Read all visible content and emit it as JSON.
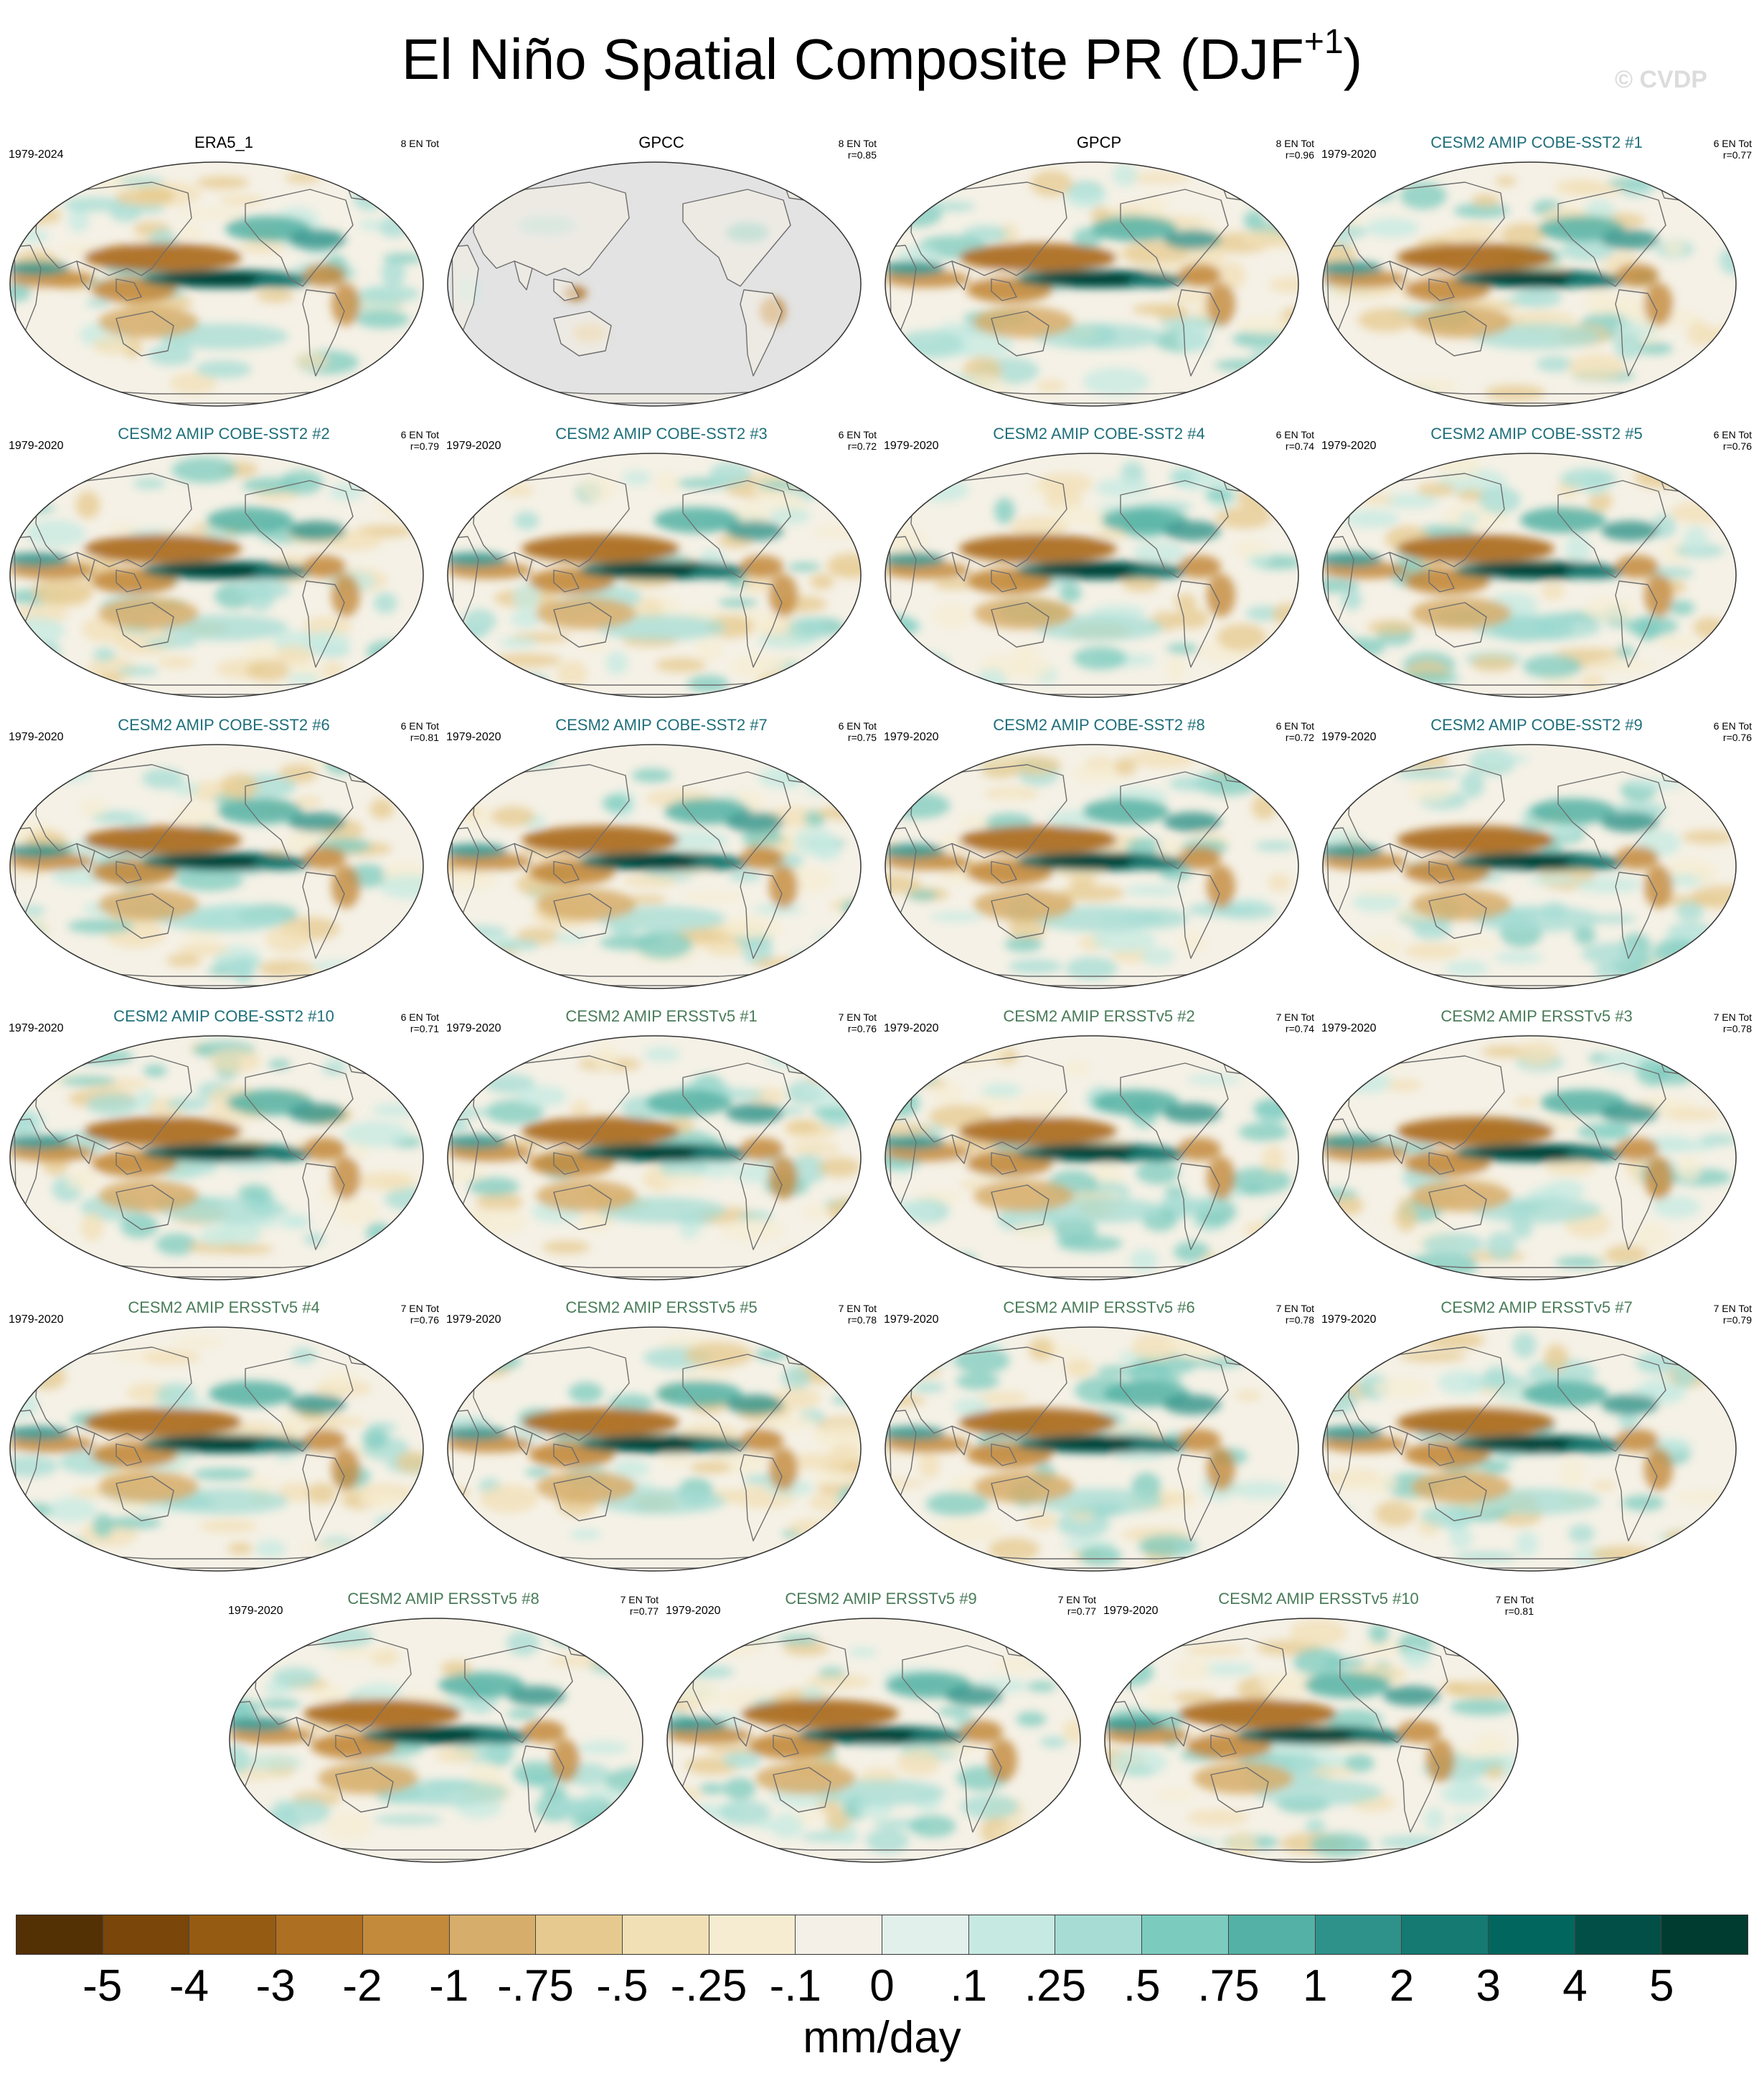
{
  "figure": {
    "title_main": "El Niño Spatial Composite PR (DJF",
    "title_sup": "+1",
    "title_close": ")",
    "watermark": "© CVDP"
  },
  "colors": {
    "observation_title": "#000000",
    "cobe_title": "#1f6f7a",
    "ersst_title": "#4a7c59",
    "ocean_anomaly_positive": "#01665e",
    "ocean_anomaly_negative": "#8c510a",
    "masked_ocean": "#e3e3e3",
    "coastline": "#6e6e6e"
  },
  "panels": [
    {
      "title": "ERA5_1",
      "years": "1979-2024",
      "count": "8 EN Tot",
      "r": "",
      "group": "obs",
      "masked": false
    },
    {
      "title": "GPCC",
      "years": "",
      "count": "8 EN Tot",
      "r": "r=0.85",
      "group": "obs",
      "masked": true
    },
    {
      "title": "GPCP",
      "years": "",
      "count": "8 EN Tot",
      "r": "r=0.96",
      "group": "obs",
      "masked": false
    },
    {
      "title": "CESM2 AMIP COBE-SST2 #1",
      "years": "1979-2020",
      "count": "6 EN Tot",
      "r": "r=0.77",
      "group": "cobe",
      "masked": false
    },
    {
      "title": "CESM2 AMIP COBE-SST2 #2",
      "years": "1979-2020",
      "count": "6 EN Tot",
      "r": "r=0.79",
      "group": "cobe",
      "masked": false
    },
    {
      "title": "CESM2 AMIP COBE-SST2 #3",
      "years": "1979-2020",
      "count": "6 EN Tot",
      "r": "r=0.72",
      "group": "cobe",
      "masked": false
    },
    {
      "title": "CESM2 AMIP COBE-SST2 #4",
      "years": "1979-2020",
      "count": "6 EN Tot",
      "r": "r=0.74",
      "group": "cobe",
      "masked": false
    },
    {
      "title": "CESM2 AMIP COBE-SST2 #5",
      "years": "1979-2020",
      "count": "6 EN Tot",
      "r": "r=0.76",
      "group": "cobe",
      "masked": false
    },
    {
      "title": "CESM2 AMIP COBE-SST2 #6",
      "years": "1979-2020",
      "count": "6 EN Tot",
      "r": "r=0.81",
      "group": "cobe",
      "masked": false
    },
    {
      "title": "CESM2 AMIP COBE-SST2 #7",
      "years": "1979-2020",
      "count": "6 EN Tot",
      "r": "r=0.75",
      "group": "cobe",
      "masked": false
    },
    {
      "title": "CESM2 AMIP COBE-SST2 #8",
      "years": "1979-2020",
      "count": "6 EN Tot",
      "r": "r=0.72",
      "group": "cobe",
      "masked": false
    },
    {
      "title": "CESM2 AMIP COBE-SST2 #9",
      "years": "1979-2020",
      "count": "6 EN Tot",
      "r": "r=0.76",
      "group": "cobe",
      "masked": false
    },
    {
      "title": "CESM2 AMIP COBE-SST2 #10",
      "years": "1979-2020",
      "count": "6 EN Tot",
      "r": "r=0.71",
      "group": "cobe",
      "masked": false
    },
    {
      "title": "CESM2 AMIP ERSSTv5 #1",
      "years": "1979-2020",
      "count": "7 EN Tot",
      "r": "r=0.76",
      "group": "ersst",
      "masked": false
    },
    {
      "title": "CESM2 AMIP ERSSTv5 #2",
      "years": "1979-2020",
      "count": "7 EN Tot",
      "r": "r=0.74",
      "group": "ersst",
      "masked": false
    },
    {
      "title": "CESM2 AMIP ERSSTv5 #3",
      "years": "1979-2020",
      "count": "7 EN Tot",
      "r": "r=0.78",
      "group": "ersst",
      "masked": false
    },
    {
      "title": "CESM2 AMIP ERSSTv5 #4",
      "years": "1979-2020",
      "count": "7 EN Tot",
      "r": "r=0.76",
      "group": "ersst",
      "masked": false
    },
    {
      "title": "CESM2 AMIP ERSSTv5 #5",
      "years": "1979-2020",
      "count": "7 EN Tot",
      "r": "r=0.78",
      "group": "ersst",
      "masked": false
    },
    {
      "title": "CESM2 AMIP ERSSTv5 #6",
      "years": "1979-2020",
      "count": "7 EN Tot",
      "r": "r=0.78",
      "group": "ersst",
      "masked": false
    },
    {
      "title": "CESM2 AMIP ERSSTv5 #7",
      "years": "1979-2020",
      "count": "7 EN Tot",
      "r": "r=0.79",
      "group": "ersst",
      "masked": false
    },
    {
      "title": "CESM2 AMIP ERSSTv5 #8",
      "years": "1979-2020",
      "count": "7 EN Tot",
      "r": "r=0.77",
      "group": "ersst",
      "masked": false
    },
    {
      "title": "CESM2 AMIP ERSSTv5 #9",
      "years": "1979-2020",
      "count": "7 EN Tot",
      "r": "r=0.77",
      "group": "ersst",
      "masked": false
    },
    {
      "title": "CESM2 AMIP ERSSTv5 #10",
      "years": "1979-2020",
      "count": "7 EN Tot",
      "r": "r=0.81",
      "group": "ersst",
      "masked": false
    }
  ],
  "colorbar": {
    "colors": [
      "#543005",
      "#7a4609",
      "#955b13",
      "#ad6f22",
      "#c38a3c",
      "#d6ad6a",
      "#e5c98f",
      "#f1dfb5",
      "#f6ecd1",
      "#f4f0e8",
      "#e2f0ec",
      "#c6e9e2",
      "#a6dcd4",
      "#7ccbbf",
      "#54b1a5",
      "#2f928a",
      "#157a72",
      "#01665e",
      "#024f47",
      "#003c30"
    ],
    "labels": [
      "-5",
      "-4",
      "-3",
      "-2",
      "-1",
      "-.75",
      "-.5",
      "-.25",
      "-.1",
      "0",
      ".1",
      ".25",
      ".5",
      ".75",
      "1",
      "2",
      "3",
      "4",
      "5"
    ],
    "units": "mm/day"
  }
}
